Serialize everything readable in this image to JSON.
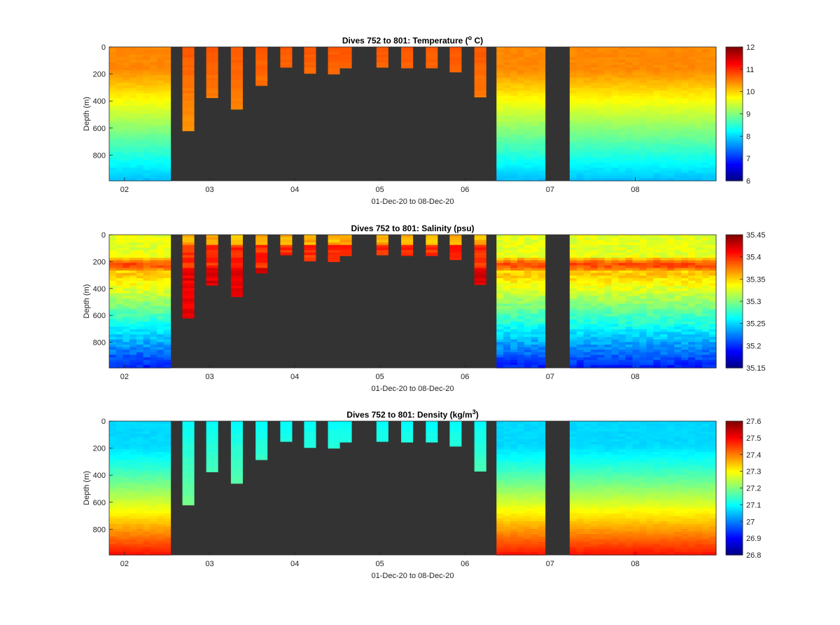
{
  "chart_data": [
    {
      "type": "heatmap",
      "key": "temperature",
      "title": "Dives 752 to 801: Temperature (",
      "title_sup": "o",
      "title_suffix": " C)",
      "ylabel": "Depth (m)",
      "xlabel": "01-Dec-20 to 08-Dec-20",
      "xlim": [
        1.82,
        8.95
      ],
      "ylim": [
        990,
        0
      ],
      "x_ticks": [
        2,
        3,
        4,
        5,
        6,
        7,
        8
      ],
      "x_tick_labels": [
        "02",
        "03",
        "04",
        "05",
        "06",
        "07",
        "08"
      ],
      "y_ticks": [
        0,
        200,
        400,
        600,
        800
      ],
      "y_tick_labels": [
        "0",
        "200",
        "400",
        "600",
        "800"
      ],
      "clim": [
        6,
        12
      ],
      "colorbar_ticks": [
        "6",
        "7",
        "8",
        "9",
        "10",
        "11",
        "12"
      ],
      "colormap": "jet",
      "background_color": "#333333",
      "profile_summary": {
        "surface_value": 10.4,
        "deep_value": 8.0,
        "shallow_dive_value": 10.7
      }
    },
    {
      "type": "heatmap",
      "key": "salinity",
      "title": "Dives 752 to 801: Salinity (psu)",
      "title_sup": "",
      "title_suffix": "",
      "ylabel": "Depth (m)",
      "xlabel": "01-Dec-20 to 08-Dec-20",
      "xlim": [
        1.82,
        8.95
      ],
      "ylim": [
        990,
        0
      ],
      "x_ticks": [
        2,
        3,
        4,
        5,
        6,
        7,
        8
      ],
      "x_tick_labels": [
        "02",
        "03",
        "04",
        "05",
        "06",
        "07",
        "08"
      ],
      "y_ticks": [
        0,
        200,
        400,
        600,
        800
      ],
      "y_tick_labels": [
        "0",
        "200",
        "400",
        "600",
        "800"
      ],
      "clim": [
        35.15,
        35.45
      ],
      "colorbar_ticks": [
        "35.15",
        "35.2",
        "35.25",
        "35.3",
        "35.35",
        "35.4",
        "35.45"
      ],
      "colormap": "jet",
      "background_color": "#333333",
      "profile_summary": {
        "surface_value": 35.33,
        "max_layer_value": 35.39,
        "max_layer_depth": 230,
        "deep_value": 35.2
      }
    },
    {
      "type": "heatmap",
      "key": "density",
      "title": "Dives 752 to 801: Density (kg/m",
      "title_sup": "3",
      "title_suffix": ")",
      "ylabel": "Depth (m)",
      "xlabel": "01-Dec-20 to 08-Dec-20",
      "xlim": [
        1.82,
        8.95
      ],
      "ylim": [
        990,
        0
      ],
      "x_ticks": [
        2,
        3,
        4,
        5,
        6,
        7,
        8
      ],
      "x_tick_labels": [
        "02",
        "03",
        "04",
        "05",
        "06",
        "07",
        "08"
      ],
      "y_ticks": [
        0,
        200,
        400,
        600,
        800
      ],
      "y_tick_labels": [
        "0",
        "200",
        "400",
        "600",
        "800"
      ],
      "clim": [
        26.8,
        27.6
      ],
      "colorbar_ticks": [
        "26.8",
        "26.9",
        "27",
        "27.1",
        "27.2",
        "27.3",
        "27.4",
        "27.5",
        "27.6"
      ],
      "colormap": "jet",
      "background_color": "#333333",
      "profile_summary": {
        "surface_value": 27.08,
        "deep_value": 27.45
      }
    }
  ],
  "dives": {
    "full_depth_segments": [
      {
        "x0": 1.82,
        "x1": 2.54,
        "n": 9,
        "max_depth": 990
      },
      {
        "x0": 6.37,
        "x1": 6.94,
        "n": 7,
        "max_depth": 990
      },
      {
        "x0": 7.23,
        "x1": 8.95,
        "n": 21,
        "max_depth": 990
      }
    ],
    "shallow_dives": [
      {
        "x0": 2.68,
        "x1": 2.82,
        "max_depth": 620
      },
      {
        "x0": 2.96,
        "x1": 3.1,
        "max_depth": 375
      },
      {
        "x0": 3.25,
        "x1": 3.39,
        "max_depth": 460
      },
      {
        "x0": 3.54,
        "x1": 3.68,
        "max_depth": 285
      },
      {
        "x0": 3.83,
        "x1": 3.97,
        "max_depth": 150
      },
      {
        "x0": 4.11,
        "x1": 4.25,
        "max_depth": 195
      },
      {
        "x0": 4.39,
        "x1": 4.53,
        "max_depth": 200
      },
      {
        "x0": 4.53,
        "x1": 4.67,
        "max_depth": 155
      },
      {
        "x0": 4.96,
        "x1": 5.1,
        "max_depth": 150
      },
      {
        "x0": 5.25,
        "x1": 5.39,
        "max_depth": 155
      },
      {
        "x0": 5.54,
        "x1": 5.68,
        "max_depth": 155
      },
      {
        "x0": 5.82,
        "x1": 5.96,
        "max_depth": 185
      },
      {
        "x0": 6.11,
        "x1": 6.25,
        "max_depth": 370
      }
    ]
  }
}
